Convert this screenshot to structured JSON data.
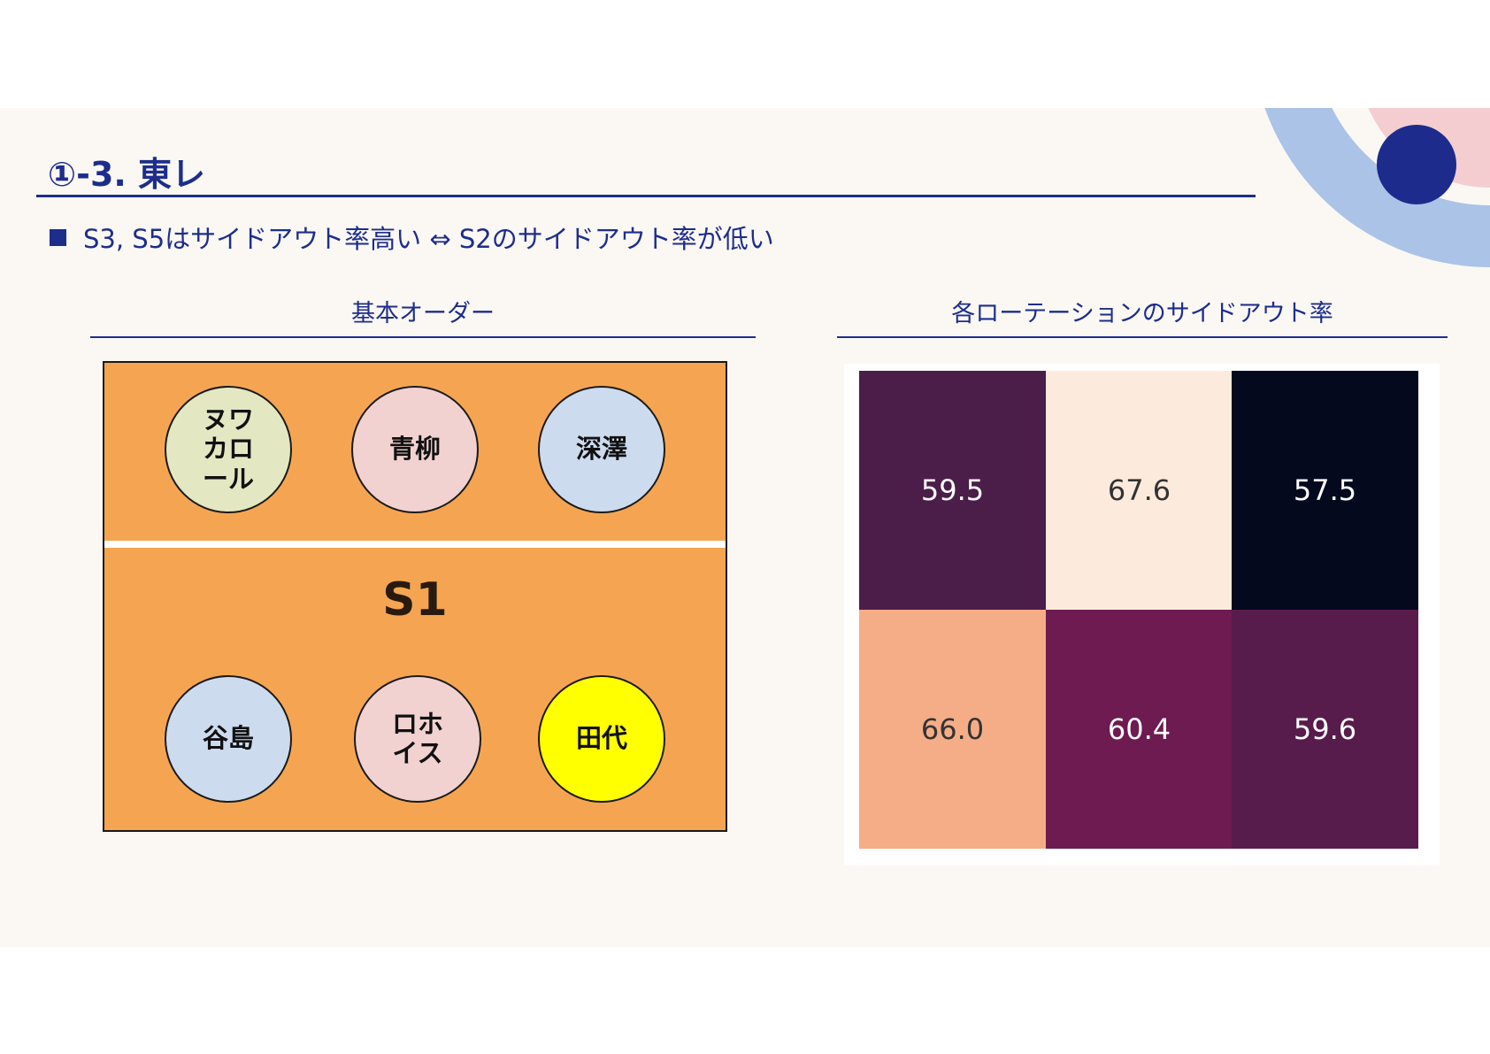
{
  "title": "①-3. 東レ",
  "bullet": "S3, S5はサイドアウト率高い ⇔ S2のサイドアウト率が低い",
  "left_section": {
    "title": "基本オーダー",
    "rotation": "S1",
    "front_row": [
      {
        "name": "ヌワカロール",
        "color": "#e3e8c2"
      },
      {
        "name": "青柳",
        "color": "#f1d2d1"
      },
      {
        "name": "深澤",
        "color": "#cddbef"
      }
    ],
    "back_row": [
      {
        "name": "谷島",
        "color": "#cddbef"
      },
      {
        "name": "ロホイス",
        "color": "#f1d2d1"
      },
      {
        "name": "田代",
        "color": "#ffff00"
      }
    ]
  },
  "right_section": {
    "title": "各ローテーションのサイドアウト率"
  },
  "chart_data": {
    "type": "heatmap",
    "rows": 2,
    "cols": 3,
    "values": [
      [
        59.5,
        67.6,
        57.5
      ],
      [
        66.0,
        60.4,
        59.6
      ]
    ],
    "labels": [
      [
        "59.5",
        "67.6",
        "57.5"
      ],
      [
        "66.0",
        "60.4",
        "59.6"
      ]
    ],
    "cell_colors": [
      [
        "#4b1d49",
        "#fcebdc",
        "#05091d"
      ],
      [
        "#f5ad87",
        "#6d1b50",
        "#581c4c"
      ]
    ],
    "text_colors": [
      [
        "#ffffff",
        "#333333",
        "#ffffff"
      ],
      [
        "#333333",
        "#ffffff",
        "#ffffff"
      ]
    ],
    "colormap": "rocket"
  },
  "colors": {
    "accent": "#1d2d8c",
    "court": "#f5a551",
    "background": "#fbf8f4"
  }
}
